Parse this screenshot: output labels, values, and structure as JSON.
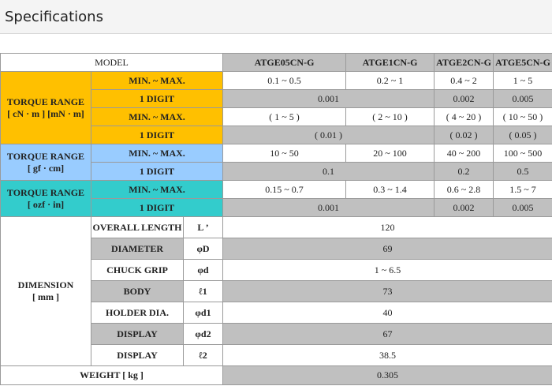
{
  "header": {
    "title": "Specifications"
  },
  "table": {
    "model_label": "MODEL",
    "models": [
      "ATGE05CN-G",
      "ATGE1CN-G",
      "ATGE2CN-G",
      "ATGE5CN-G"
    ],
    "torque": [
      {
        "label": "TORQUE RANGE",
        "unit": "[ cN · m ] [mN · m]",
        "color": "#ffc000",
        "rows": [
          {
            "label": "MIN. ~ MAX.",
            "values": [
              "0.1 ~ 0.5",
              "0.2 ~ 1",
              "0.4 ~ 2",
              "1 ~ 5"
            ]
          },
          {
            "label": "1 DIGIT",
            "values": [
              "0.001",
              "0.002",
              "0.005"
            ]
          },
          {
            "label": "MIN. ~ MAX.",
            "values": [
              "( 1 ~ 5 )",
              "( 2 ~ 10 )",
              "( 4 ~ 20 )",
              "( 10 ~ 50 )"
            ]
          },
          {
            "label": "1 DIGIT",
            "values": [
              "( 0.01 )",
              "( 0.02 )",
              "( 0.05 )"
            ]
          }
        ]
      },
      {
        "label": "TORQUE RANGE",
        "unit": "[ gf · cm]",
        "color": "#99ccff",
        "rows": [
          {
            "label": "MIN. ~ MAX.",
            "values": [
              "10 ~ 50",
              "20 ~ 100",
              "40 ~ 200",
              "100 ~ 500"
            ]
          },
          {
            "label": "1 DIGIT",
            "values": [
              "0.1",
              "0.2",
              "0.5"
            ]
          }
        ]
      },
      {
        "label": "TORQUE RANGE",
        "unit": "[ ozf · in]",
        "color": "#33cccc",
        "rows": [
          {
            "label": "MIN. ~ MAX.",
            "values": [
              "0.15 ~ 0.7",
              "0.3 ~ 1.4",
              "0.6 ~ 2.8",
              "1.5 ~ 7"
            ]
          },
          {
            "label": "1 DIGIT",
            "values": [
              "0.001",
              "0.002",
              "0.005"
            ]
          }
        ]
      }
    ],
    "dimension": {
      "label": "DIMENSION",
      "unit": "[ mm ]",
      "rows": [
        {
          "label": "OVERALL LENGTH",
          "symbol": "L ’",
          "value": "120"
        },
        {
          "label": "DIAMETER",
          "symbol": "φD",
          "value": "69"
        },
        {
          "label": "CHUCK GRIP",
          "symbol": "φd",
          "value": "1 ~ 6.5"
        },
        {
          "label": "BODY",
          "symbol": "ℓ1",
          "value": "73"
        },
        {
          "label": "HOLDER DIA.",
          "symbol": "φd1",
          "value": "40"
        },
        {
          "label": "DISPLAY",
          "symbol": "φd2",
          "value": "67"
        },
        {
          "label": "DISPLAY",
          "symbol": "ℓ2",
          "value": "38.5"
        }
      ]
    },
    "weight": {
      "label": "WEIGHT [ kg ]",
      "value": "0.305"
    }
  }
}
